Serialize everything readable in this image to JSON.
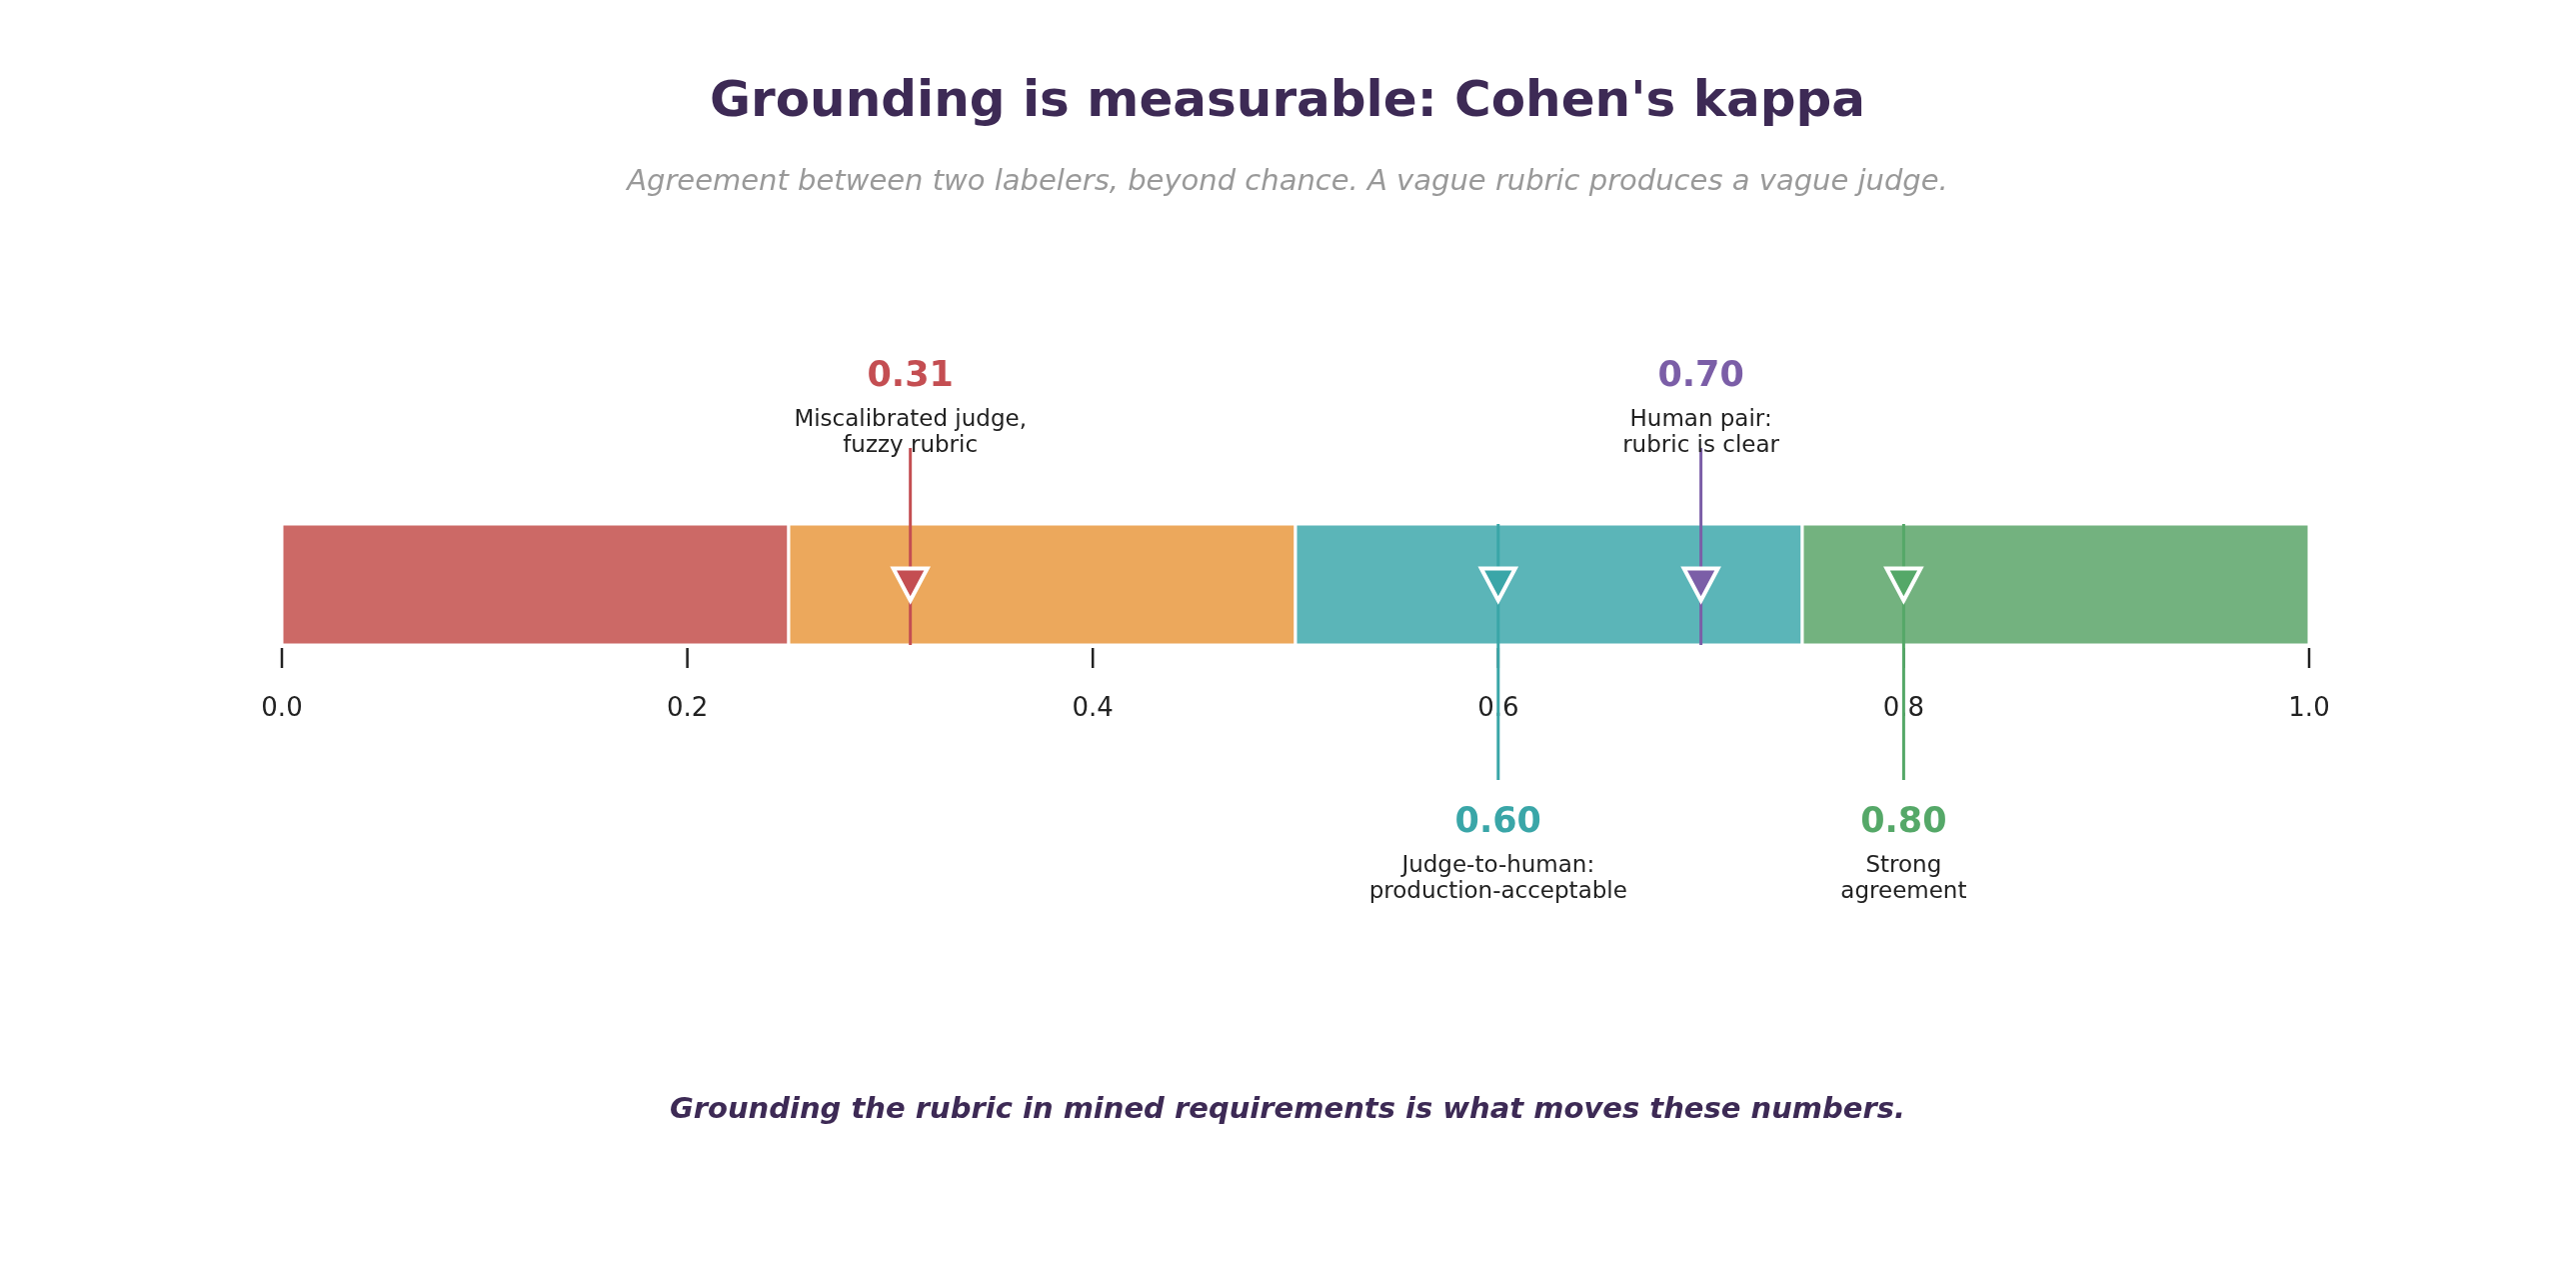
{
  "chart_data": {
    "type": "bar",
    "orientation": "horizontal",
    "stacked": true,
    "title": "Grounding is measurable: Cohen's kappa",
    "subtitle": "Agreement between two labelers, beyond chance. A vague rubric produces a vague judge.",
    "categories": [
      null
    ],
    "series": [
      {
        "color": "#cc6966",
        "values": [
          0.25
        ]
      },
      {
        "color": "#eca85c",
        "values": [
          0.25
        ]
      },
      {
        "color": "#5bb5b8",
        "values": [
          0.25
        ]
      },
      {
        "color": "#73b27f",
        "values": [
          0.25
        ]
      }
    ],
    "xlim": [
      0,
      1
    ],
    "xticks": [
      {
        "value": 0,
        "label": "0.0"
      },
      {
        "value": 0.2,
        "label": "0.2"
      },
      {
        "value": 0.4,
        "label": "0.4"
      },
      {
        "value": 0.6,
        "label": "0.6"
      },
      {
        "value": 0.8,
        "label": "0.8"
      },
      {
        "value": 1,
        "label": "1.0"
      }
    ],
    "ref_lines": [
      {
        "axis": "x",
        "value": 0.31,
        "label": "0.31",
        "color": "#c44e52"
      },
      {
        "axis": "x",
        "value": 0.6,
        "label": "0.60",
        "color": "#3aa6a8"
      },
      {
        "axis": "x",
        "value": 0.7,
        "label": "0.70",
        "color": "#7b5ea7"
      },
      {
        "axis": "x",
        "value": 0.8,
        "label": "0.80",
        "color": "#55a868"
      }
    ],
    "annotations": [
      "Miscalibrated judge,\nfuzzy rubric",
      "Judge-to-human:\nproduction-acceptable",
      "Human pair:\nrubric is clear",
      "Strong\nagreement",
      "Grounding the rubric in mined requirements is what moves these numbers."
    ]
  }
}
